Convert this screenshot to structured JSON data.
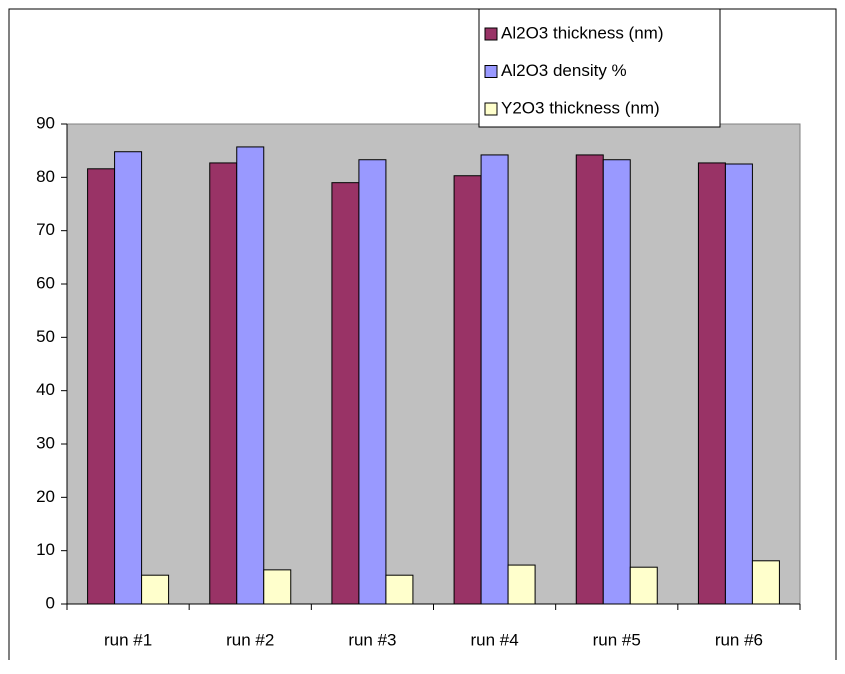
{
  "chart_data": {
    "type": "bar",
    "categories": [
      "run #1",
      "run #2",
      "run #3",
      "run #4",
      "run #5",
      "run #6"
    ],
    "series": [
      {
        "name": "Al2O3 thickness (nm)",
        "color": "#993366",
        "values": [
          81.6,
          82.7,
          79.0,
          80.3,
          84.2,
          82.7
        ]
      },
      {
        "name": "Al2O3 density %",
        "color": "#9999ff",
        "values": [
          84.8,
          85.7,
          83.3,
          84.2,
          83.3,
          82.5
        ]
      },
      {
        "name": "Y2O3 thickness (nm)",
        "color": "#ffffcc",
        "values": [
          5.4,
          6.4,
          5.4,
          7.3,
          6.9,
          8.1
        ]
      }
    ],
    "ylim": [
      0,
      90
    ],
    "yticks": [
      0,
      10,
      20,
      30,
      40,
      50,
      60,
      70,
      80,
      90
    ],
    "grid": false,
    "plot_background": "#c0c0c0",
    "legend": "top-right"
  }
}
